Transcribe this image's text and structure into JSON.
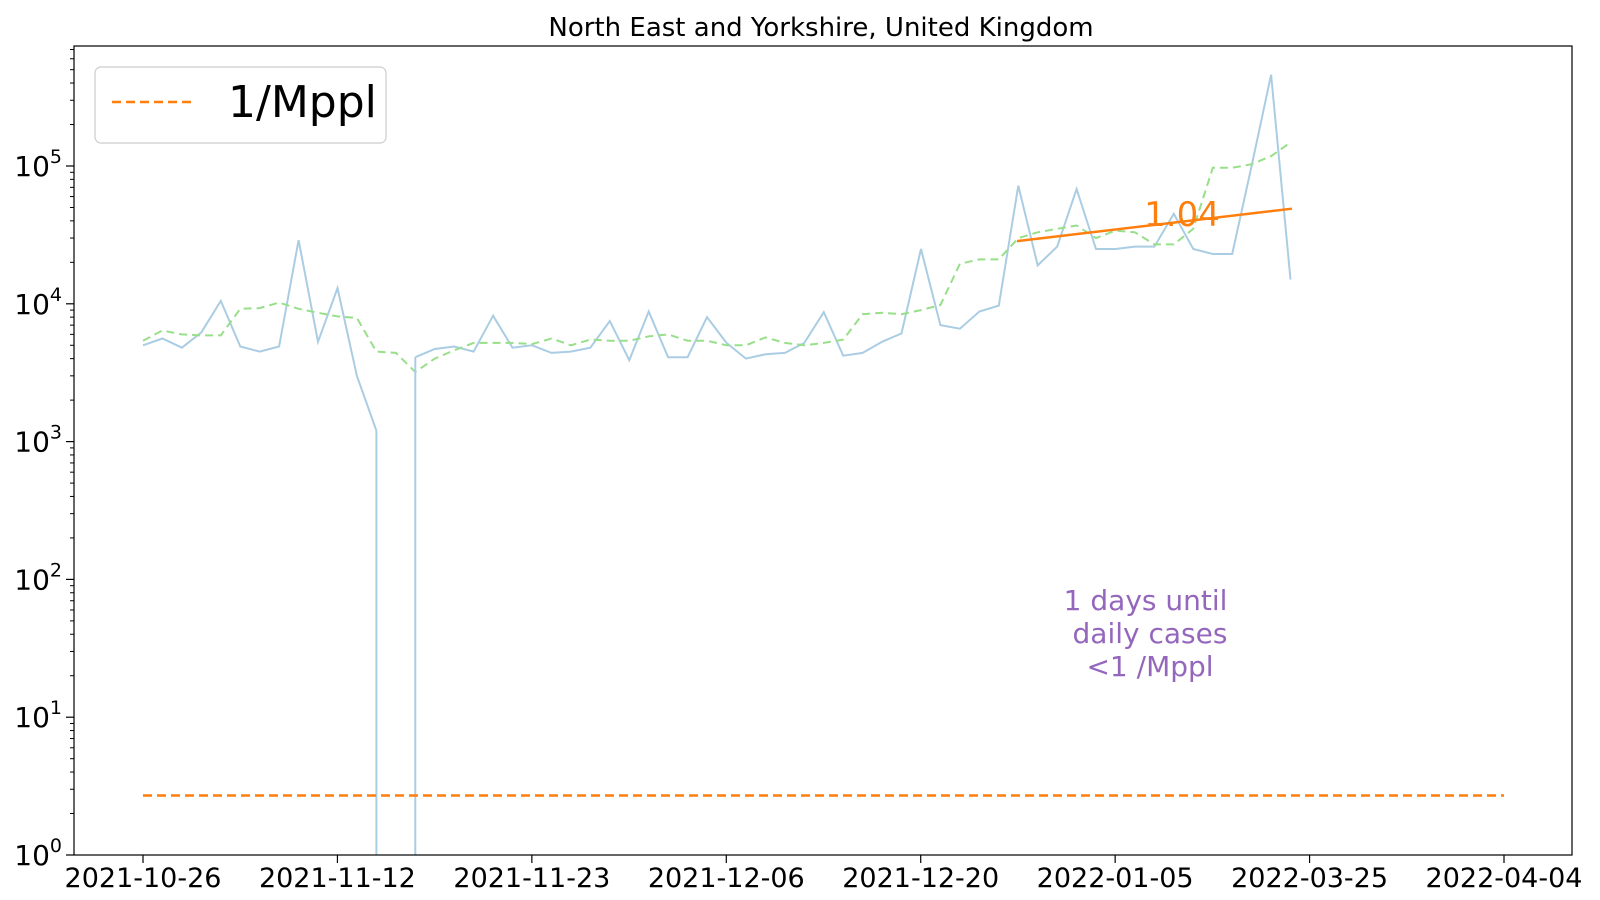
{
  "chart_data": {
    "type": "line",
    "title": "North East and Yorkshire, United Kingdom",
    "xlabel": "",
    "ylabel": "",
    "y_scale": "log",
    "ylim": [
      1,
      900000
    ],
    "grid": false,
    "legend_position": "upper-left",
    "x_tick_labels": [
      "2021-10-26",
      "2021-11-12",
      "2021-11-23",
      "2021-12-06",
      "2021-12-20",
      "2022-01-05",
      "2022-03-25",
      "2022-04-04"
    ],
    "y_tick_labels": [
      {
        "base": "10",
        "exp": "0",
        "value": 1
      },
      {
        "base": "10",
        "exp": "1",
        "value": 10
      },
      {
        "base": "10",
        "exp": "2",
        "value": 100
      },
      {
        "base": "10",
        "exp": "3",
        "value": 1000
      },
      {
        "base": "10",
        "exp": "4",
        "value": 10000
      },
      {
        "base": "10",
        "exp": "5",
        "value": 100000
      }
    ],
    "series": [
      {
        "key": "daily",
        "color": "#aacde3",
        "style": "solid",
        "values": [
          5000,
          5600,
          4800,
          6200,
          10500,
          4900,
          4500,
          4900,
          29000,
          5300,
          13000,
          3000,
          1200,
          null,
          4100,
          4700,
          4900,
          4500,
          8200,
          4800,
          5000,
          4400,
          4500,
          4800,
          7500,
          3900,
          8800,
          4100,
          4100,
          8000,
          5200,
          4000,
          4300,
          4400,
          5200,
          8700,
          4200,
          4400,
          5300,
          6100,
          25000,
          7000,
          6600,
          8800,
          9700,
          72000,
          19000,
          26000,
          68000,
          25000,
          25000,
          26000,
          26000,
          45000,
          25000,
          23000,
          23000,
          100000,
          460000,
          15000
        ]
      },
      {
        "key": "average",
        "color": "#98df8a",
        "style": "dashed",
        "values": [
          5400,
          6400,
          6000,
          5900,
          5900,
          9200,
          9300,
          10200,
          9200,
          8600,
          8100,
          7900,
          4500,
          4400,
          3200,
          4000,
          4600,
          5200,
          5200,
          5200,
          5100,
          5600,
          5000,
          5500,
          5400,
          5400,
          5800,
          6000,
          5400,
          5400,
          5000,
          5000,
          5700,
          5200,
          5000,
          5200,
          5500,
          8400,
          8600,
          8400,
          9000,
          9800,
          19500,
          21000,
          21000,
          30000,
          33000,
          35000,
          37000,
          30000,
          34000,
          33000,
          27000,
          27000,
          35000,
          97000,
          97000,
          103000,
          118000,
          148000
        ]
      }
    ],
    "fit_line": {
      "color": "#ff7f0e",
      "y_start": 28500,
      "y_end": 49000,
      "label": "1.04"
    },
    "threshold_line": {
      "color": "#ff7f0e",
      "value": 2.7,
      "legend_label": "1/Mppl"
    },
    "annotation": {
      "lines": [
        "1 days until",
        " daily cases",
        "<1 /Mppl"
      ],
      "color": "#9467bd"
    }
  }
}
